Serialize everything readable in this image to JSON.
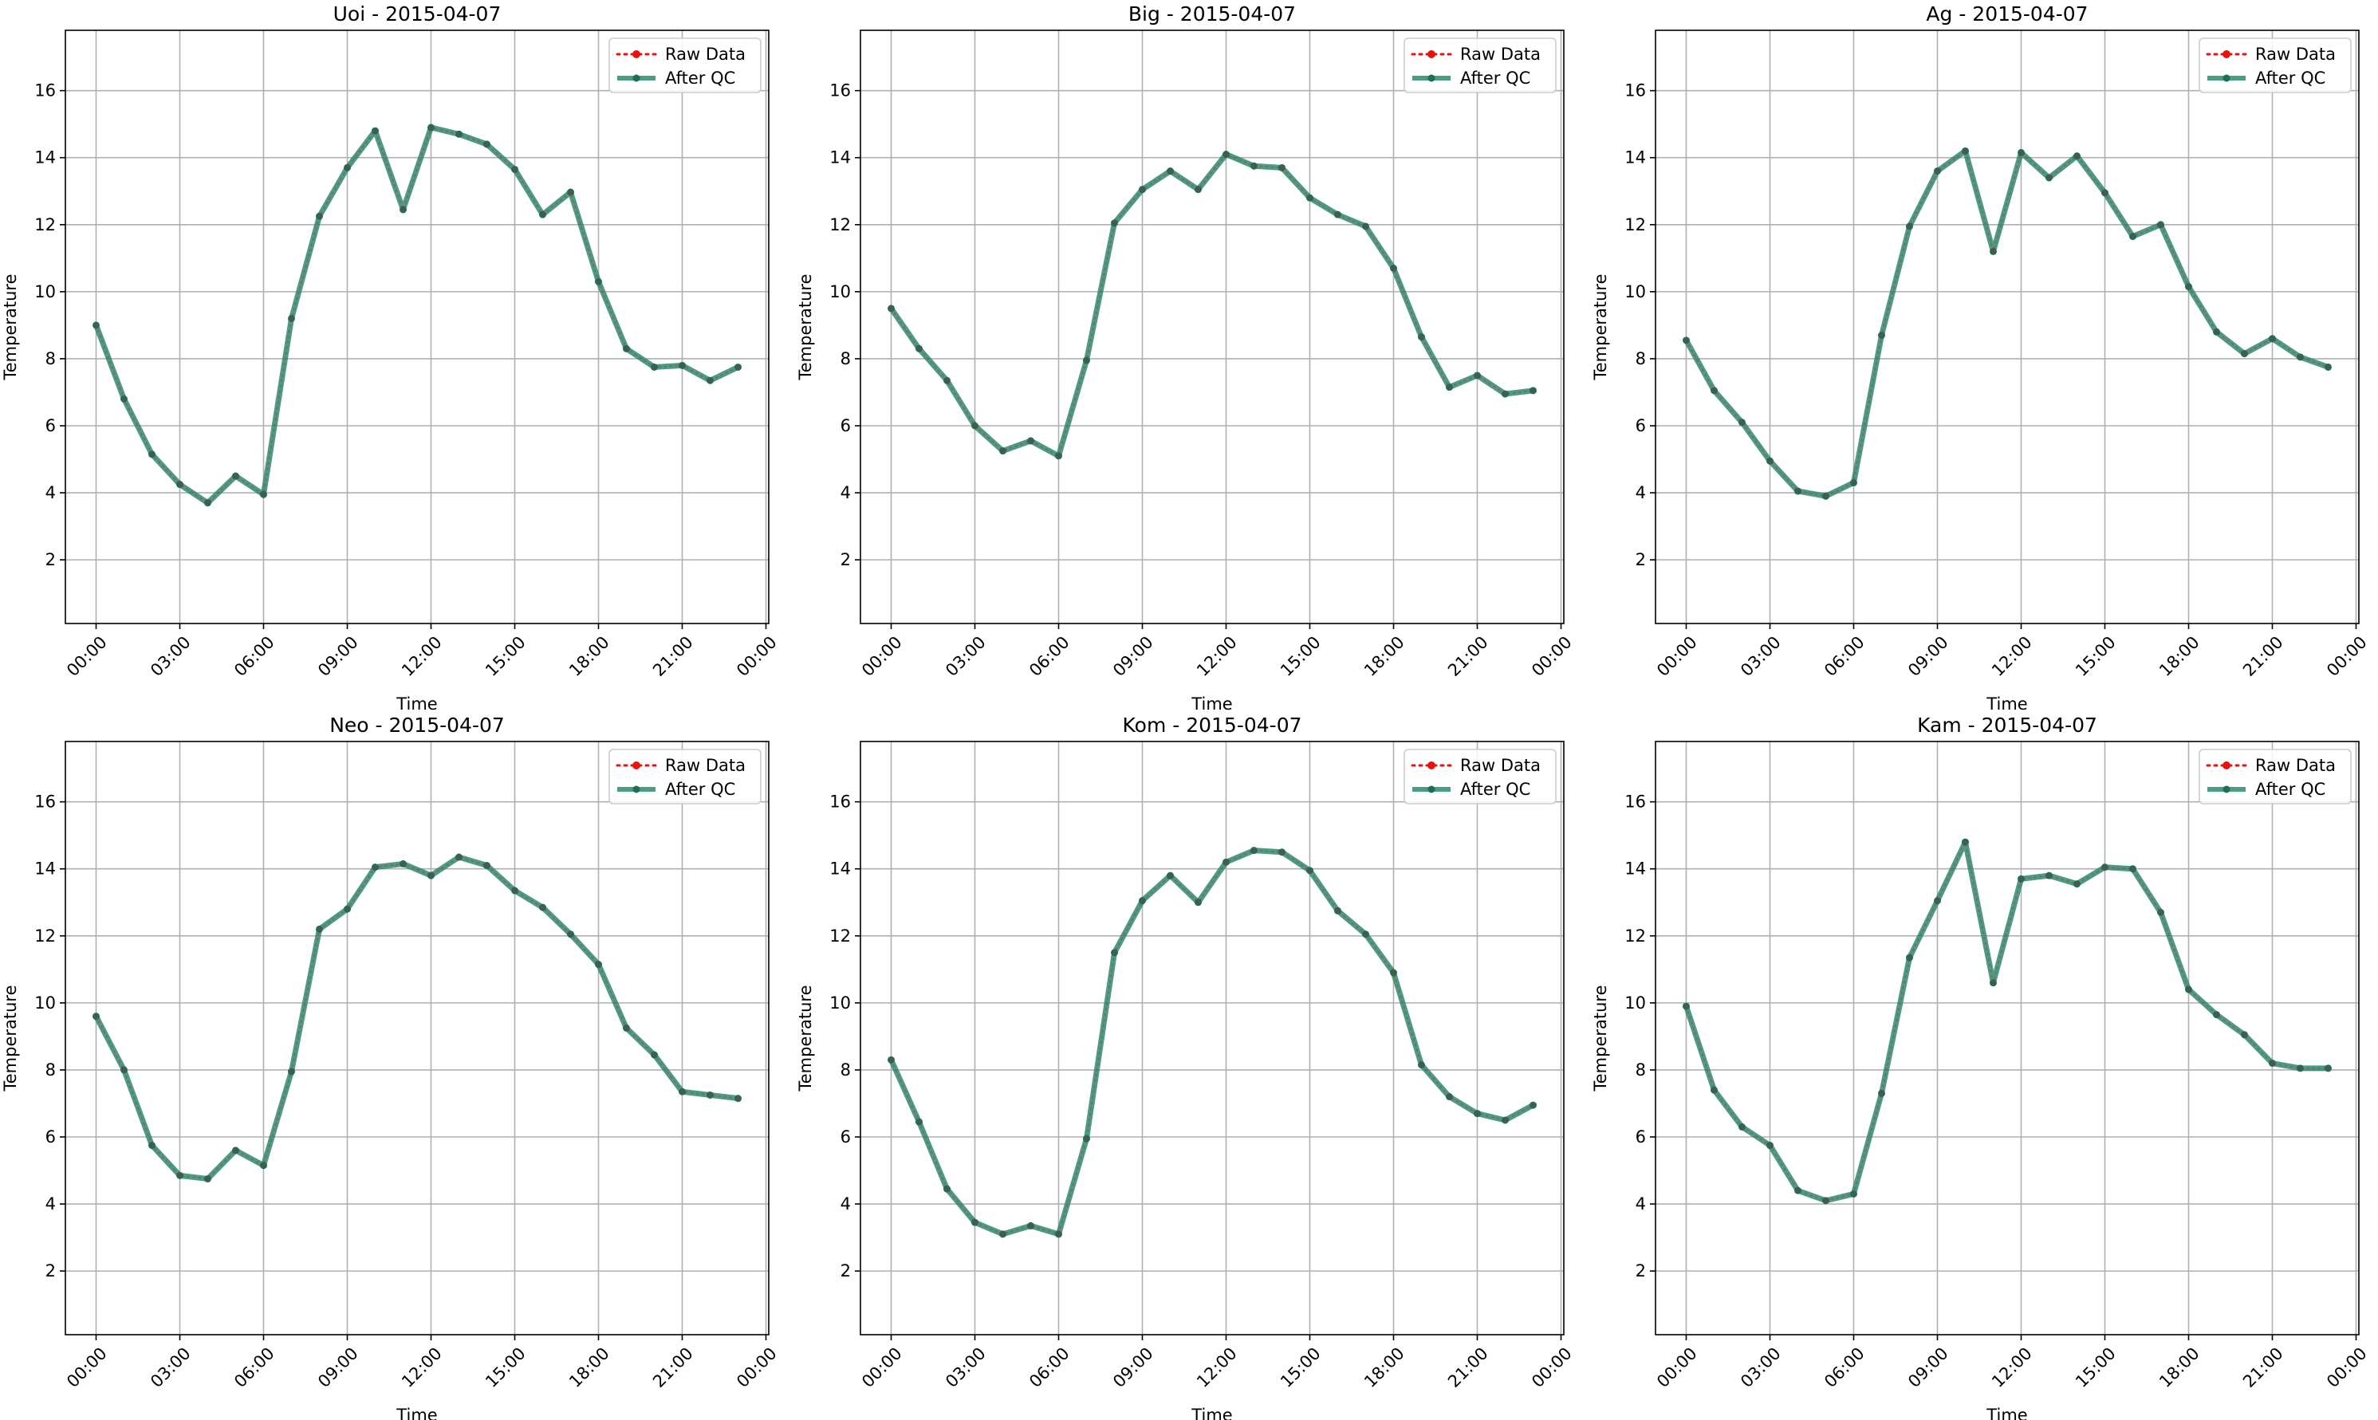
{
  "figure": {
    "layout": "2x3 grid of line charts"
  },
  "colors": {
    "raw": "#e8130e",
    "qc": "#2a8c70",
    "qc_marker": "#1f6e57",
    "grid": "#b0b0b0",
    "axes": "#000000"
  },
  "legend": {
    "placement": "top-right",
    "raw_label": "Raw Data",
    "qc_label": "After QC"
  },
  "chart_data": [
    {
      "type": "line",
      "title": "Uoi - 2015-04-07",
      "xlabel": "Time",
      "ylabel": "Temperature",
      "x": [
        0,
        1,
        2,
        3,
        4,
        5,
        6,
        7,
        8,
        9,
        10,
        11,
        12,
        13,
        14,
        15,
        16,
        17,
        18,
        19,
        20,
        21,
        22,
        23
      ],
      "xticks": [
        "00:00",
        "03:00",
        "06:00",
        "09:00",
        "12:00",
        "15:00",
        "18:00",
        "21:00",
        "00:00"
      ],
      "yticks": [
        "2",
        "4",
        "6",
        "8",
        "10",
        "12",
        "14",
        "16"
      ],
      "ylim": [
        0.1,
        17.8
      ],
      "grid": true,
      "legend": "top-right",
      "series": [
        {
          "name": "Raw Data",
          "values": [
            9.0,
            6.8,
            5.15,
            4.25,
            3.7,
            4.5,
            3.95,
            9.2,
            12.25,
            13.7,
            14.8,
            12.45,
            14.9,
            14.7,
            14.4,
            13.65,
            12.3,
            12.97,
            10.3,
            8.3,
            7.75,
            7.8,
            7.35,
            7.75
          ]
        },
        {
          "name": "After QC",
          "values": [
            9.0,
            6.8,
            5.15,
            4.25,
            3.7,
            4.5,
            3.95,
            9.2,
            12.25,
            13.7,
            14.8,
            12.45,
            14.9,
            14.7,
            14.4,
            13.65,
            12.3,
            12.97,
            10.3,
            8.3,
            7.75,
            7.8,
            7.35,
            7.75
          ]
        }
      ]
    },
    {
      "type": "line",
      "title": "Big - 2015-04-07",
      "xlabel": "Time",
      "ylabel": "Temperature",
      "x": [
        0,
        1,
        2,
        3,
        4,
        5,
        6,
        7,
        8,
        9,
        10,
        11,
        12,
        13,
        14,
        15,
        16,
        17,
        18,
        19,
        20,
        21,
        22,
        23
      ],
      "xticks": [
        "00:00",
        "03:00",
        "06:00",
        "09:00",
        "12:00",
        "15:00",
        "18:00",
        "21:00",
        "00:00"
      ],
      "yticks": [
        "2",
        "4",
        "6",
        "8",
        "10",
        "12",
        "14",
        "16"
      ],
      "ylim": [
        0.1,
        17.8
      ],
      "grid": true,
      "legend": "top-right",
      "series": [
        {
          "name": "Raw Data",
          "values": [
            9.5,
            8.3,
            7.35,
            6.0,
            5.25,
            5.55,
            5.1,
            7.95,
            12.05,
            13.05,
            13.6,
            13.05,
            14.1,
            13.75,
            13.7,
            12.8,
            12.3,
            11.95,
            10.7,
            8.65,
            7.15,
            7.5,
            6.95,
            7.05
          ]
        },
        {
          "name": "After QC",
          "values": [
            9.5,
            8.3,
            7.35,
            6.0,
            5.25,
            5.55,
            5.1,
            7.95,
            12.05,
            13.05,
            13.6,
            13.05,
            14.1,
            13.75,
            13.7,
            12.8,
            12.3,
            11.95,
            10.7,
            8.65,
            7.15,
            7.5,
            6.95,
            7.05
          ]
        }
      ]
    },
    {
      "type": "line",
      "title": "Ag - 2015-04-07",
      "xlabel": "Time",
      "ylabel": "Temperature",
      "x": [
        0,
        1,
        2,
        3,
        4,
        5,
        6,
        7,
        8,
        9,
        10,
        11,
        12,
        13,
        14,
        15,
        16,
        17,
        18,
        19,
        20,
        21,
        22,
        23
      ],
      "xticks": [
        "00:00",
        "03:00",
        "06:00",
        "09:00",
        "12:00",
        "15:00",
        "18:00",
        "21:00",
        "00:00"
      ],
      "yticks": [
        "2",
        "4",
        "6",
        "8",
        "10",
        "12",
        "14",
        "16"
      ],
      "ylim": [
        0.1,
        17.8
      ],
      "grid": true,
      "legend": "top-right",
      "series": [
        {
          "name": "Raw Data",
          "values": [
            8.55,
            7.05,
            6.1,
            4.95,
            4.05,
            3.9,
            4.3,
            8.7,
            11.95,
            13.6,
            14.2,
            11.2,
            14.15,
            13.4,
            14.05,
            12.95,
            11.65,
            12.0,
            10.15,
            8.8,
            8.15,
            8.6,
            8.05,
            7.75
          ]
        },
        {
          "name": "After QC",
          "values": [
            8.55,
            7.05,
            6.1,
            4.95,
            4.05,
            3.9,
            4.3,
            8.7,
            11.95,
            13.6,
            14.2,
            11.2,
            14.15,
            13.4,
            14.05,
            12.95,
            11.65,
            12.0,
            10.15,
            8.8,
            8.15,
            8.6,
            8.05,
            7.75
          ]
        }
      ]
    },
    {
      "type": "line",
      "title": "Neo - 2015-04-07",
      "xlabel": "Time",
      "ylabel": "Temperature",
      "x": [
        0,
        1,
        2,
        3,
        4,
        5,
        6,
        7,
        8,
        9,
        10,
        11,
        12,
        13,
        14,
        15,
        16,
        17,
        18,
        19,
        20,
        21,
        22,
        23
      ],
      "xticks": [
        "00:00",
        "03:00",
        "06:00",
        "09:00",
        "12:00",
        "15:00",
        "18:00",
        "21:00",
        "00:00"
      ],
      "yticks": [
        "2",
        "4",
        "6",
        "8",
        "10",
        "12",
        "14",
        "16"
      ],
      "ylim": [
        0.1,
        17.8
      ],
      "grid": true,
      "legend": "top-right",
      "series": [
        {
          "name": "Raw Data",
          "values": [
            9.6,
            8.0,
            5.75,
            4.85,
            4.75,
            5.6,
            5.15,
            7.95,
            12.2,
            12.8,
            14.05,
            14.15,
            13.8,
            14.35,
            14.1,
            13.35,
            12.85,
            12.05,
            11.15,
            9.25,
            8.45,
            7.35,
            7.25,
            7.15
          ]
        },
        {
          "name": "After QC",
          "values": [
            9.6,
            8.0,
            5.75,
            4.85,
            4.75,
            5.6,
            5.15,
            7.95,
            12.2,
            12.8,
            14.05,
            14.15,
            13.8,
            14.35,
            14.1,
            13.35,
            12.85,
            12.05,
            11.15,
            9.25,
            8.45,
            7.35,
            7.25,
            7.15
          ]
        }
      ]
    },
    {
      "type": "line",
      "title": "Kom - 2015-04-07",
      "xlabel": "Time",
      "ylabel": "Temperature",
      "x": [
        0,
        1,
        2,
        3,
        4,
        5,
        6,
        7,
        8,
        9,
        10,
        11,
        12,
        13,
        14,
        15,
        16,
        17,
        18,
        19,
        20,
        21,
        22,
        23
      ],
      "xticks": [
        "00:00",
        "03:00",
        "06:00",
        "09:00",
        "12:00",
        "15:00",
        "18:00",
        "21:00",
        "00:00"
      ],
      "yticks": [
        "2",
        "4",
        "6",
        "8",
        "10",
        "12",
        "14",
        "16"
      ],
      "ylim": [
        0.1,
        17.8
      ],
      "grid": true,
      "legend": "top-right",
      "series": [
        {
          "name": "Raw Data",
          "values": [
            8.3,
            6.45,
            4.45,
            3.45,
            3.1,
            3.35,
            3.1,
            5.95,
            11.5,
            13.05,
            13.8,
            13.0,
            14.2,
            14.55,
            14.5,
            13.95,
            12.75,
            12.05,
            10.9,
            8.15,
            7.2,
            6.7,
            6.5,
            6.95
          ]
        },
        {
          "name": "After QC",
          "values": [
            8.3,
            6.45,
            4.45,
            3.45,
            3.1,
            3.35,
            3.1,
            5.95,
            11.5,
            13.05,
            13.8,
            13.0,
            14.2,
            14.55,
            14.5,
            13.95,
            12.75,
            12.05,
            10.9,
            8.15,
            7.2,
            6.7,
            6.5,
            6.95
          ]
        }
      ]
    },
    {
      "type": "line",
      "title": "Kam - 2015-04-07",
      "xlabel": "Time",
      "ylabel": "Temperature",
      "x": [
        0,
        1,
        2,
        3,
        4,
        5,
        6,
        7,
        8,
        9,
        10,
        11,
        12,
        13,
        14,
        15,
        16,
        17,
        18,
        19,
        20,
        21,
        22,
        23
      ],
      "xticks": [
        "00:00",
        "03:00",
        "06:00",
        "09:00",
        "12:00",
        "15:00",
        "18:00",
        "21:00",
        "00:00"
      ],
      "yticks": [
        "2",
        "4",
        "6",
        "8",
        "10",
        "12",
        "14",
        "16"
      ],
      "ylim": [
        0.1,
        17.8
      ],
      "grid": true,
      "legend": "top-right",
      "series": [
        {
          "name": "Raw Data",
          "values": [
            9.9,
            7.4,
            6.3,
            5.75,
            4.4,
            4.1,
            4.3,
            7.3,
            11.35,
            13.05,
            14.8,
            10.6,
            13.7,
            13.8,
            13.55,
            14.05,
            14.0,
            12.7,
            10.4,
            9.65,
            9.05,
            8.2,
            8.05,
            8.05
          ]
        },
        {
          "name": "After QC",
          "values": [
            9.9,
            7.4,
            6.3,
            5.75,
            4.4,
            4.1,
            4.3,
            7.3,
            11.35,
            13.05,
            14.8,
            10.6,
            13.7,
            13.8,
            13.55,
            14.05,
            14.0,
            12.7,
            10.4,
            9.65,
            9.05,
            8.2,
            8.05,
            8.05
          ]
        }
      ]
    }
  ]
}
